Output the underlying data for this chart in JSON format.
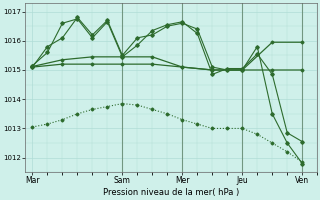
{
  "bg_color": "#cff0ea",
  "grid_color": "#b0ddd6",
  "line_color": "#2d6b2d",
  "xlabel": "Pression niveau de la mer( hPa )",
  "ylim": [
    1011.5,
    1017.3
  ],
  "yticks": [
    1012,
    1013,
    1014,
    1015,
    1016,
    1017
  ],
  "xtick_labels": [
    "Mar",
    "Sam",
    "Mer",
    "Jeu",
    "Ven"
  ],
  "xtick_pos": [
    0,
    36,
    60,
    84,
    108
  ],
  "xlim": [
    -3,
    114
  ],
  "series": [
    {
      "x": [
        0,
        6,
        12,
        18,
        24,
        30,
        36,
        42,
        48,
        54,
        60,
        66,
        72,
        78,
        84,
        90,
        96,
        102,
        108
      ],
      "y": [
        1015.1,
        1015.8,
        1016.1,
        1016.8,
        1016.2,
        1016.7,
        1015.5,
        1016.1,
        1016.2,
        1016.5,
        1016.6,
        1016.4,
        1015.1,
        1015.0,
        1015.0,
        1015.8,
        1013.5,
        1012.5,
        1011.8
      ],
      "style": "-",
      "marker": "D",
      "markersize": 1.8,
      "linewidth": 0.8
    },
    {
      "x": [
        0,
        6,
        12,
        18,
        24,
        30,
        36,
        42,
        48,
        54,
        60,
        66,
        72,
        78,
        84,
        90,
        96,
        102,
        108
      ],
      "y": [
        1015.15,
        1015.6,
        1016.6,
        1016.75,
        1016.1,
        1016.65,
        1015.45,
        1015.85,
        1016.35,
        1016.55,
        1016.65,
        1016.25,
        1014.85,
        1015.05,
        1015.05,
        1015.55,
        1014.85,
        1012.85,
        1012.55
      ],
      "style": "-",
      "marker": "D",
      "markersize": 1.8,
      "linewidth": 0.8
    },
    {
      "x": [
        0,
        12,
        24,
        36,
        48,
        60,
        72,
        84,
        96,
        108
      ],
      "y": [
        1015.12,
        1015.35,
        1015.45,
        1015.45,
        1015.45,
        1015.1,
        1015.0,
        1015.0,
        1015.95,
        1015.95
      ],
      "style": "-",
      "marker": "D",
      "markersize": 1.5,
      "linewidth": 0.9
    },
    {
      "x": [
        0,
        12,
        24,
        36,
        48,
        60,
        72,
        84,
        96,
        108
      ],
      "y": [
        1015.1,
        1015.2,
        1015.2,
        1015.2,
        1015.2,
        1015.1,
        1015.0,
        1015.0,
        1015.0,
        1015.0
      ],
      "style": "-",
      "marker": "D",
      "markersize": 1.5,
      "linewidth": 0.9
    },
    {
      "x": [
        0,
        6,
        12,
        18,
        24,
        30,
        36,
        42,
        48,
        54,
        60,
        66,
        72,
        78,
        84,
        90,
        96,
        102,
        108
      ],
      "y": [
        1013.05,
        1013.15,
        1013.3,
        1013.5,
        1013.65,
        1013.75,
        1013.85,
        1013.8,
        1013.65,
        1013.5,
        1013.3,
        1013.15,
        1013.0,
        1013.0,
        1013.0,
        1012.8,
        1012.5,
        1012.2,
        1011.85
      ],
      "style": ":",
      "marker": "D",
      "markersize": 1.5,
      "linewidth": 0.8
    }
  ],
  "vline_positions": [
    36,
    60,
    84,
    108
  ],
  "vline_color": "#446644",
  "vline_alpha": 0.6,
  "vline_linewidth": 0.8
}
